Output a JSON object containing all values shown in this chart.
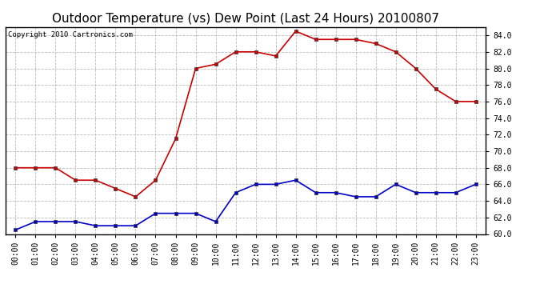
{
  "title": "Outdoor Temperature (vs) Dew Point (Last 24 Hours) 20100807",
  "copyright_text": "Copyright 2010 Cartronics.com",
  "x_labels": [
    "00:00",
    "01:00",
    "02:00",
    "03:00",
    "04:00",
    "05:00",
    "06:00",
    "07:00",
    "08:00",
    "09:00",
    "10:00",
    "11:00",
    "12:00",
    "13:00",
    "14:00",
    "15:00",
    "16:00",
    "17:00",
    "18:00",
    "19:00",
    "20:00",
    "21:00",
    "22:00",
    "23:00"
  ],
  "temp_data": [
    68.0,
    68.0,
    68.0,
    66.5,
    66.5,
    65.5,
    64.5,
    66.5,
    71.5,
    80.0,
    80.5,
    82.0,
    82.0,
    81.5,
    84.5,
    83.5,
    83.5,
    83.5,
    83.0,
    82.0,
    80.0,
    77.5,
    76.0,
    76.0
  ],
  "dew_data": [
    60.5,
    61.5,
    61.5,
    61.5,
    61.0,
    61.0,
    61.0,
    62.5,
    62.5,
    62.5,
    61.5,
    65.0,
    66.0,
    66.0,
    66.5,
    65.0,
    65.0,
    64.5,
    64.5,
    66.0,
    65.0,
    65.0,
    65.0,
    66.0
  ],
  "temp_color": "#cc0000",
  "dew_color": "#0000cc",
  "ylim_min": 60.0,
  "ylim_max": 85.0,
  "ytick_min": 60.0,
  "ytick_max": 84.0,
  "ytick_step": 2.0,
  "bg_color": "#ffffff",
  "plot_bg_color": "#ffffff",
  "grid_color": "#bbbbbb",
  "title_fontsize": 11,
  "axis_fontsize": 7,
  "copyright_fontsize": 6.5
}
